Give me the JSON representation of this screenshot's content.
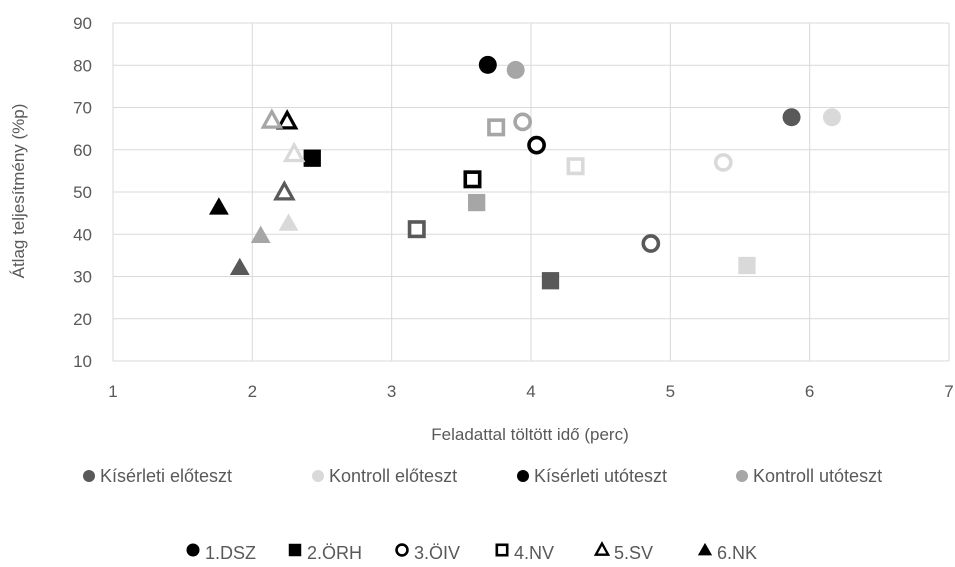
{
  "chart_data": {
    "type": "scatter",
    "title": "",
    "xlabel": "Feladattal töltött idő (perc)",
    "ylabel": "Átlag teljesítmény (%p)",
    "xlim": [
      1,
      7
    ],
    "ylim": [
      10,
      90
    ],
    "x_ticks": [
      "1",
      "2",
      "3",
      "4",
      "5",
      "6",
      "7"
    ],
    "y_ticks": [
      "10",
      "20",
      "30",
      "40",
      "50",
      "60",
      "70",
      "80",
      "90"
    ],
    "grid": true,
    "colors": {
      "Kísérleti előteszt": "#595959",
      "Kontroll előteszt": "#d9d9d9",
      "Kísérleti utóteszt": "#000000",
      "Kontroll utóteszt": "#a6a6a6"
    },
    "series_legend": [
      "Kísérleti előteszt",
      "Kontroll előteszt",
      "Kísérleti utóteszt",
      "Kontroll utóteszt"
    ],
    "marker_legend": [
      {
        "label": "1.DSZ",
        "marker": "filled-circle"
      },
      {
        "label": "2.ÖRH",
        "marker": "filled-square"
      },
      {
        "label": "3.ÖIV",
        "marker": "hollow-circle"
      },
      {
        "label": "4.NV",
        "marker": "hollow-square"
      },
      {
        "label": "5.SV",
        "marker": "hollow-triangle"
      },
      {
        "label": "6.NK",
        "marker": "filled-triangle"
      }
    ],
    "points": [
      {
        "series": "Kísérleti előteszt",
        "marker": "filled-circle",
        "x": 5.87,
        "y": 67.7
      },
      {
        "series": "Kontroll előteszt",
        "marker": "filled-circle",
        "x": 6.16,
        "y": 67.7
      },
      {
        "series": "Kísérleti utóteszt",
        "marker": "filled-circle",
        "x": 3.69,
        "y": 80.1
      },
      {
        "series": "Kontroll utóteszt",
        "marker": "filled-circle",
        "x": 3.89,
        "y": 78.9
      },
      {
        "series": "Kísérleti előteszt",
        "marker": "filled-square",
        "x": 4.14,
        "y": 29.0
      },
      {
        "series": "Kontroll előteszt",
        "marker": "filled-square",
        "x": 5.55,
        "y": 32.6
      },
      {
        "series": "Kísérleti utóteszt",
        "marker": "filled-square",
        "x": 2.43,
        "y": 58.0
      },
      {
        "series": "Kontroll utóteszt",
        "marker": "filled-square",
        "x": 3.61,
        "y": 47.5
      },
      {
        "series": "Kísérleti előteszt",
        "marker": "hollow-circle",
        "x": 4.86,
        "y": 37.8
      },
      {
        "series": "Kontroll előteszt",
        "marker": "hollow-circle",
        "x": 5.38,
        "y": 57.0
      },
      {
        "series": "Kísérleti utóteszt",
        "marker": "hollow-circle",
        "x": 4.04,
        "y": 61.1
      },
      {
        "series": "Kontroll utóteszt",
        "marker": "hollow-circle",
        "x": 3.94,
        "y": 66.6
      },
      {
        "series": "Kísérleti előteszt",
        "marker": "hollow-square",
        "x": 3.18,
        "y": 41.2
      },
      {
        "series": "Kontroll előteszt",
        "marker": "hollow-square",
        "x": 4.32,
        "y": 56.1
      },
      {
        "series": "Kísérleti utóteszt",
        "marker": "hollow-square",
        "x": 3.58,
        "y": 53.0
      },
      {
        "series": "Kontroll utóteszt",
        "marker": "hollow-square",
        "x": 3.75,
        "y": 65.3
      },
      {
        "series": "Kísérleti előteszt",
        "marker": "hollow-triangle",
        "x": 2.23,
        "y": 49.9
      },
      {
        "series": "Kontroll előteszt",
        "marker": "hollow-triangle",
        "x": 2.3,
        "y": 59.0
      },
      {
        "series": "Kísérleti utóteszt",
        "marker": "hollow-triangle",
        "x": 2.25,
        "y": 66.7
      },
      {
        "series": "Kontroll utóteszt",
        "marker": "hollow-triangle",
        "x": 2.14,
        "y": 66.9
      },
      {
        "series": "Kísérleti előteszt",
        "marker": "filled-triangle",
        "x": 1.91,
        "y": 32.1
      },
      {
        "series": "Kontroll előteszt",
        "marker": "filled-triangle",
        "x": 2.26,
        "y": 42.6
      },
      {
        "series": "Kísérleti utóteszt",
        "marker": "filled-triangle",
        "x": 1.76,
        "y": 46.4
      },
      {
        "series": "Kontroll utóteszt",
        "marker": "filled-triangle",
        "x": 2.06,
        "y": 39.7
      }
    ]
  }
}
